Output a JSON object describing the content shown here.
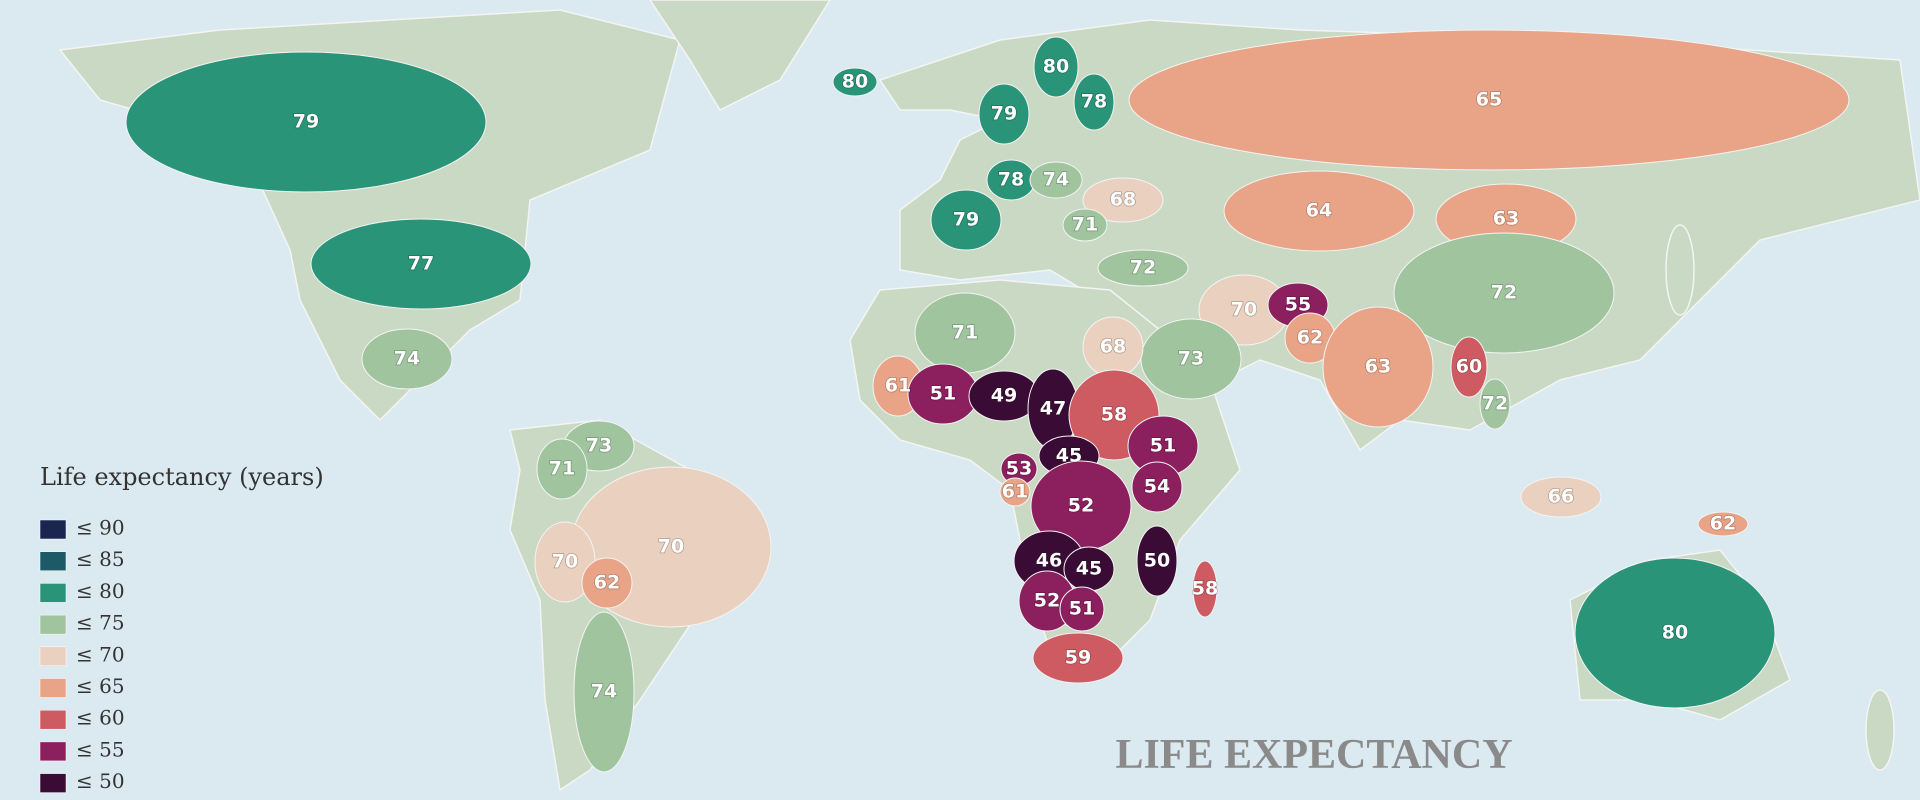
{
  "title": "LIFE EXPECTANCY",
  "legend": {
    "title": "Life expectancy (years)",
    "items": [
      {
        "value": 90,
        "label": "≤ 90",
        "color": "#1a2550"
      },
      {
        "value": 85,
        "label": "≤ 85",
        "color": "#1d5a67"
      },
      {
        "value": 80,
        "label": "≤ 80",
        "color": "#2a9478"
      },
      {
        "value": 75,
        "label": "≤ 75",
        "color": "#9fc49e"
      },
      {
        "value": 70,
        "label": "≤ 70",
        "color": "#ead0bf"
      },
      {
        "value": 65,
        "label": "≤ 65",
        "color": "#e9a487"
      },
      {
        "value": 60,
        "label": "≤ 60",
        "color": "#cf5b62"
      },
      {
        "value": 55,
        "label": "≤ 55",
        "color": "#8c1f5e"
      },
      {
        "value": 50,
        "label": "≤ 50",
        "color": "#3a0c35"
      }
    ]
  },
  "regions": {
    "values": [
      79,
      77,
      74,
      80,
      79,
      80,
      78,
      78,
      79,
      74,
      68,
      71,
      72,
      65,
      64,
      63,
      72,
      70,
      55,
      62,
      63,
      73,
      68,
      71,
      61,
      51,
      49,
      47,
      58,
      51,
      45,
      54,
      53,
      61,
      52,
      46,
      45,
      50,
      58,
      52,
      51,
      59,
      73,
      71,
      70,
      70,
      62,
      74,
      80,
      66,
      62,
      60,
      72
    ]
  }
}
